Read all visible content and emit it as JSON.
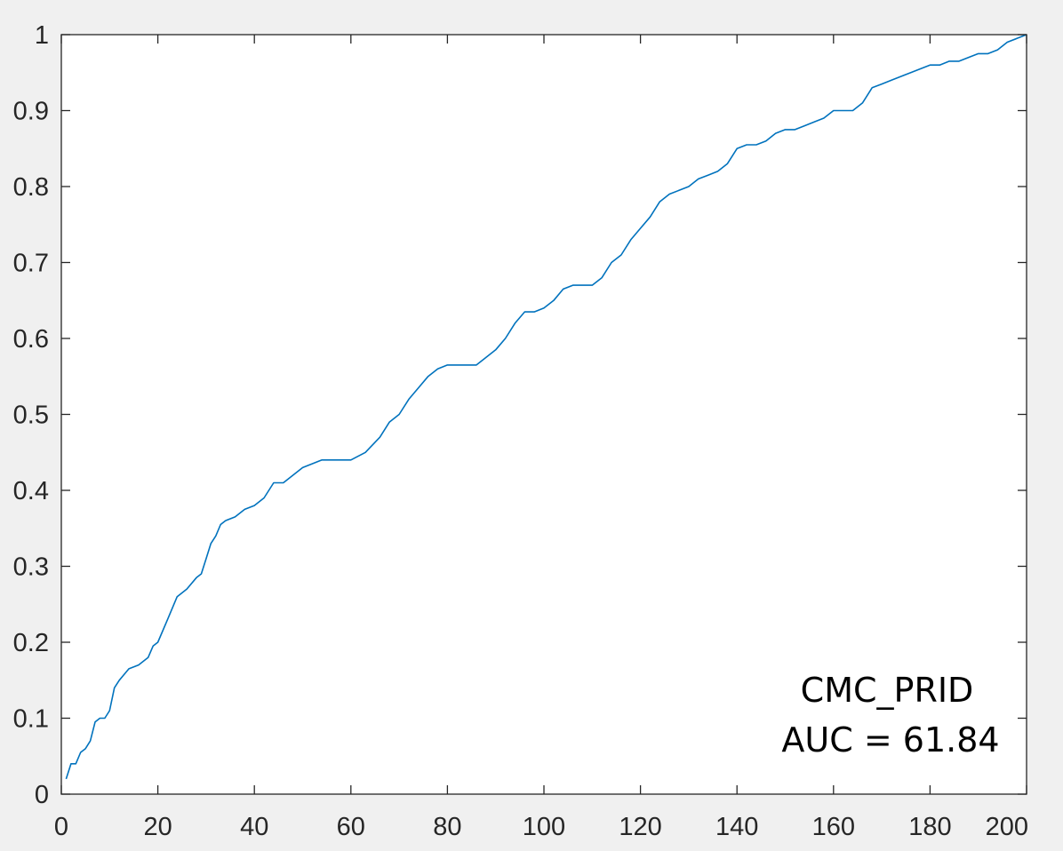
{
  "chart_data": {
    "type": "line",
    "title": "",
    "xlabel": "",
    "ylabel": "",
    "xlim": [
      0,
      200
    ],
    "ylim": [
      0,
      1
    ],
    "grid": false,
    "line_color": "#0072bd",
    "x_ticks": [
      0,
      20,
      40,
      60,
      80,
      100,
      120,
      140,
      160,
      180,
      200
    ],
    "y_ticks": [
      0,
      0.1,
      0.2,
      0.3,
      0.4,
      0.5,
      0.6,
      0.7,
      0.8,
      0.9,
      1
    ],
    "x_tick_labels": [
      "0",
      "20",
      "40",
      "60",
      "80",
      "100",
      "120",
      "140",
      "160",
      "180",
      "200"
    ],
    "y_tick_labels": [
      "0",
      "0.1",
      "0.2",
      "0.3",
      "0.4",
      "0.5",
      "0.6",
      "0.7",
      "0.8",
      "0.9",
      "1"
    ],
    "annotation": [
      "CMC_PRID",
      "AUC = 61.84"
    ],
    "series": [
      {
        "x": [
          1,
          2,
          3,
          4,
          5,
          6,
          7,
          8,
          9,
          10,
          11,
          12,
          14,
          16,
          18,
          19,
          20,
          22,
          24,
          26,
          28,
          29,
          30,
          31,
          32,
          33,
          34,
          36,
          38,
          40,
          42,
          44,
          46,
          50,
          54,
          60,
          63,
          66,
          68,
          70,
          72,
          74,
          76,
          78,
          80,
          82,
          86,
          88,
          90,
          92,
          94,
          96,
          98,
          100,
          102,
          104,
          106,
          110,
          112,
          114,
          116,
          118,
          120,
          122,
          124,
          126,
          128,
          130,
          132,
          134,
          136,
          138,
          140,
          142,
          144,
          146,
          148,
          150,
          152,
          154,
          156,
          158,
          160,
          162,
          164,
          166,
          168,
          170,
          172,
          174,
          176,
          178,
          180,
          182,
          184,
          186,
          188,
          190,
          192,
          194,
          196,
          198,
          200
        ],
        "y": [
          0.02,
          0.04,
          0.04,
          0.055,
          0.06,
          0.07,
          0.095,
          0.1,
          0.1,
          0.11,
          0.14,
          0.15,
          0.165,
          0.17,
          0.18,
          0.195,
          0.2,
          0.23,
          0.26,
          0.27,
          0.285,
          0.29,
          0.31,
          0.33,
          0.34,
          0.355,
          0.36,
          0.365,
          0.375,
          0.38,
          0.39,
          0.41,
          0.41,
          0.43,
          0.44,
          0.44,
          0.45,
          0.47,
          0.49,
          0.5,
          0.52,
          0.535,
          0.55,
          0.56,
          0.565,
          0.565,
          0.565,
          0.575,
          0.585,
          0.6,
          0.62,
          0.635,
          0.635,
          0.64,
          0.65,
          0.665,
          0.67,
          0.67,
          0.68,
          0.7,
          0.71,
          0.73,
          0.745,
          0.76,
          0.78,
          0.79,
          0.795,
          0.8,
          0.81,
          0.815,
          0.82,
          0.83,
          0.85,
          0.855,
          0.855,
          0.86,
          0.87,
          0.875,
          0.875,
          0.88,
          0.885,
          0.89,
          0.9,
          0.9,
          0.9,
          0.91,
          0.93,
          0.935,
          0.94,
          0.945,
          0.95,
          0.955,
          0.96,
          0.96,
          0.965,
          0.965,
          0.97,
          0.975,
          0.975,
          0.98,
          0.99,
          0.995,
          1.0
        ]
      }
    ]
  }
}
